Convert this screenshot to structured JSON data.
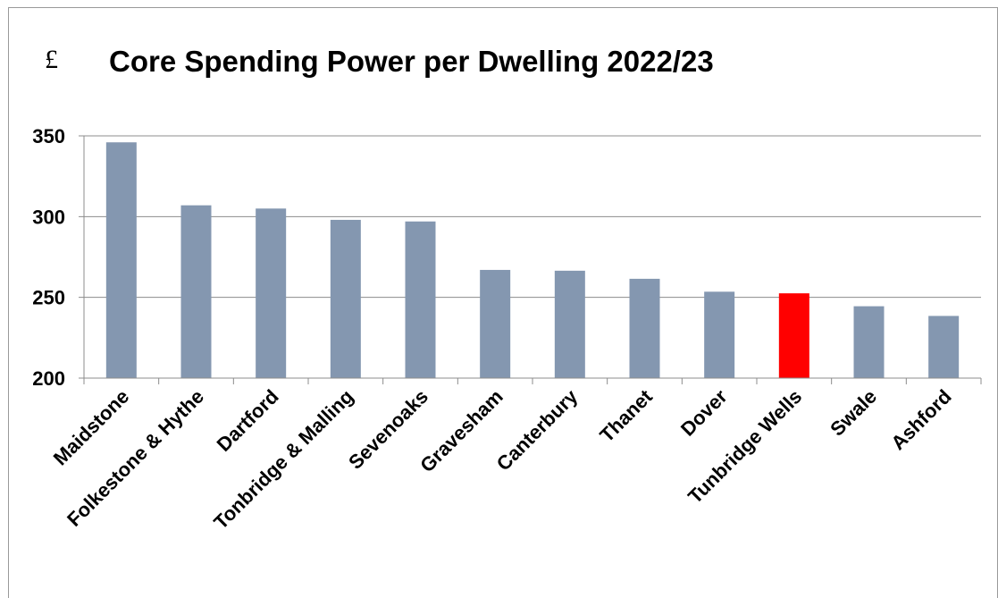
{
  "chart_data": {
    "type": "bar",
    "title": "Core Spending Power per Dwelling 2022/23",
    "unit_label": "£",
    "categories": [
      "Maidstone",
      "Folkestone & Hythe",
      "Dartford",
      "Tonbridge & Malling",
      "Sevenoaks",
      "Gravesham",
      "Canterbury",
      "Thanet",
      "Dover",
      "Tunbridge Wells",
      "Swale",
      "Ashford"
    ],
    "values": [
      346,
      307,
      305,
      298,
      297,
      267,
      266.5,
      261.5,
      253.5,
      252.5,
      244.5,
      238.5
    ],
    "highlight_index": 9,
    "ylim": [
      200,
      350
    ],
    "yticks": [
      200,
      250,
      300,
      350
    ],
    "grid": true,
    "colors": {
      "bar": "#8497b0",
      "highlight": "#ff0000",
      "grid": "#8c8c8c",
      "axis": "#8c8c8c"
    }
  }
}
